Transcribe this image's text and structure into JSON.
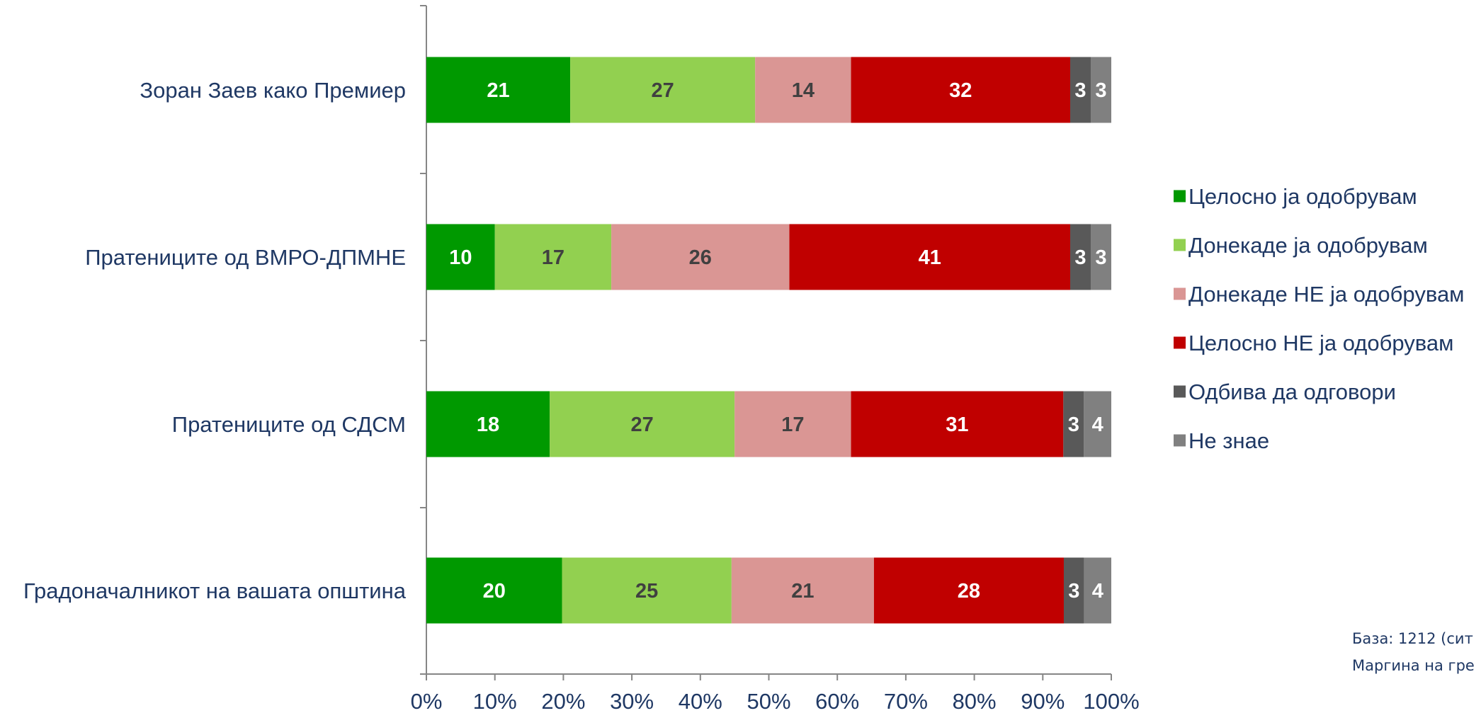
{
  "chart_data": {
    "type": "bar",
    "orientation": "horizontal",
    "stacked": true,
    "categories": [
      "Зоран Заев како Премиер",
      "Пратениците од ВМРО-ДПМНЕ",
      "Пратениците од СДСМ",
      "Градоначалникот на вашата општина"
    ],
    "series": [
      {
        "name": "Целосно ја одобрувам",
        "color": "#009900",
        "label_color": "#ffffff",
        "values": [
          21,
          10,
          18,
          20
        ]
      },
      {
        "name": "Донекаде ја одобрувам",
        "color": "#92d050",
        "label_color": "#404040",
        "values": [
          27,
          17,
          27,
          25
        ]
      },
      {
        "name": "Донекаде НЕ ја одобрувам",
        "color": "#da9694",
        "label_color": "#404040",
        "values": [
          14,
          26,
          17,
          21
        ]
      },
      {
        "name": "Целосно НЕ ја одобрувам",
        "color": "#c00000",
        "label_color": "#ffffff",
        "values": [
          32,
          41,
          31,
          28
        ]
      },
      {
        "name": "Одбива да одговори",
        "color": "#595959",
        "label_color": "#ffffff",
        "values": [
          3,
          3,
          3,
          3
        ]
      },
      {
        "name": "Не знае",
        "color": "#808080",
        "label_color": "#ffffff",
        "values": [
          3,
          3,
          4,
          4
        ]
      }
    ],
    "xlim": [
      0,
      100
    ],
    "x_ticks": [
      "0%",
      "10%",
      "20%",
      "30%",
      "40%",
      "50%",
      "60%",
      "70%",
      "80%",
      "90%",
      "100%"
    ],
    "legend_position": "right",
    "grid": false
  },
  "footnote": {
    "line1": "База: 1212 (сит",
    "line2": "Маргина на гре"
  }
}
